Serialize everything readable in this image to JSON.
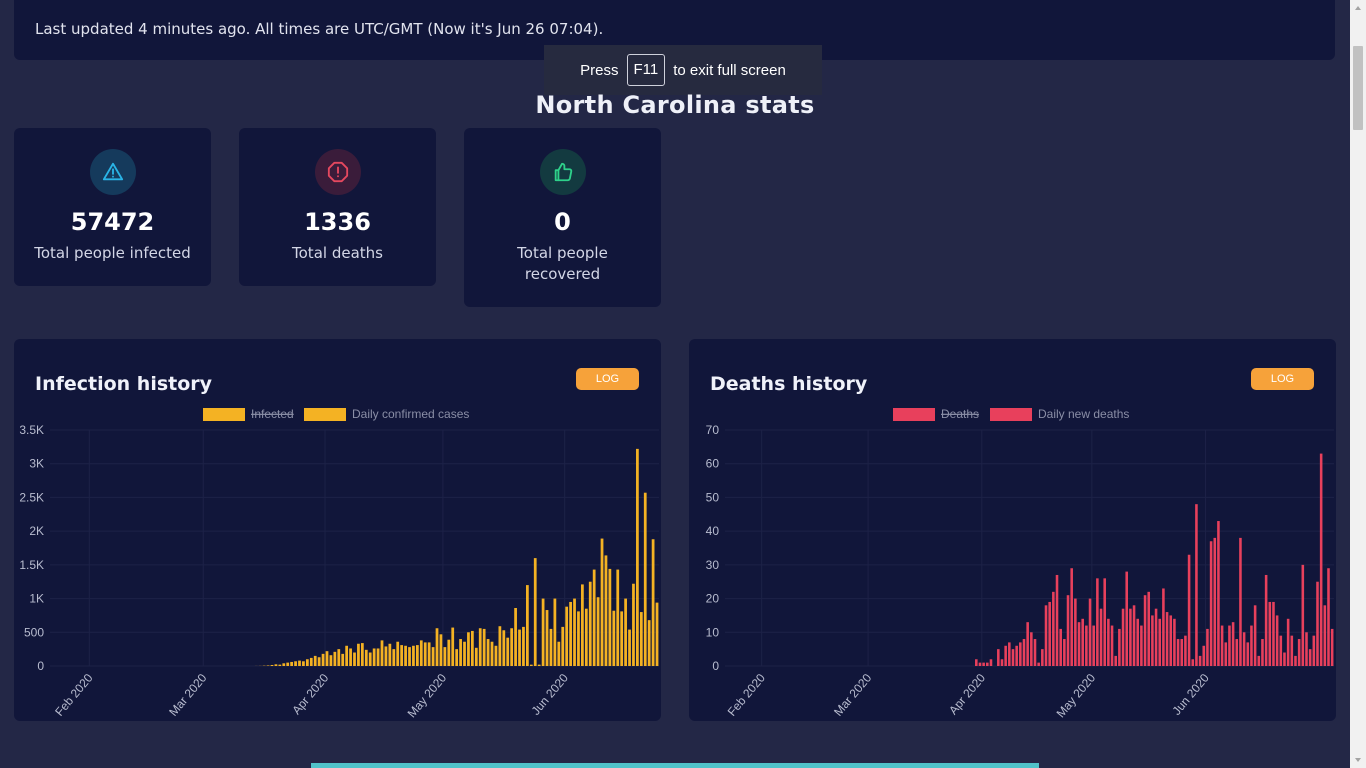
{
  "banner": {
    "text": "Last updated 4 minutes ago. All times are UTC/GMT (Now it's Jun 26 07:04)."
  },
  "fullscreen_toast": {
    "press": "Press",
    "key": "F11",
    "rest": "to exit full screen"
  },
  "page": {
    "title": "North Carolina stats"
  },
  "stats": [
    {
      "value": "57472",
      "label": "Total people infected",
      "icon": "warning-triangle-icon",
      "color": "#2ab4e6"
    },
    {
      "value": "1336",
      "label": "Total deaths",
      "icon": "alert-octagon-icon",
      "color": "#e5485f"
    },
    {
      "value": "0",
      "label": "Total people recovered",
      "icon": "thumbs-up-icon",
      "color": "#2ed18a"
    }
  ],
  "colors": {
    "infection": "#f4b223",
    "deaths": "#e8405c",
    "accent": "#f6a23a",
    "card": "#11163a",
    "background": "#232746"
  },
  "charts": {
    "infection": {
      "title": "Infection history",
      "log_label": "LOG"
    },
    "deaths": {
      "title": "Deaths history",
      "log_label": "LOG"
    }
  },
  "chart_data": [
    {
      "type": "bar",
      "title": "Infection history",
      "legend": [
        {
          "name": "Infected",
          "hidden": true
        },
        {
          "name": "Daily confirmed cases",
          "hidden": false
        }
      ],
      "ylim": [
        0,
        3500
      ],
      "yticks": [
        0,
        500,
        1000,
        1500,
        2000,
        2500,
        3000,
        3500
      ],
      "yticklabels": [
        "0",
        "500",
        "1K",
        "1.5K",
        "2K",
        "2.5K",
        "3K",
        "3.5K"
      ],
      "xticklabels": [
        "Feb 2020",
        "Mar 2020",
        "Apr 2020",
        "May 2020",
        "Jun 2020"
      ],
      "x_start": "2020-01-22",
      "series": [
        {
          "name": "Daily confirmed cases",
          "values": [
            0,
            0,
            0,
            0,
            0,
            0,
            0,
            0,
            0,
            0,
            0,
            0,
            0,
            0,
            0,
            0,
            0,
            0,
            0,
            0,
            0,
            0,
            0,
            0,
            0,
            0,
            0,
            0,
            0,
            0,
            0,
            0,
            0,
            0,
            0,
            0,
            0,
            0,
            0,
            0,
            0,
            0,
            0,
            0,
            0,
            0,
            0,
            0,
            0,
            0,
            0,
            0,
            1,
            2,
            5,
            8,
            15,
            25,
            20,
            40,
            50,
            60,
            70,
            80,
            70,
            100,
            120,
            150,
            130,
            180,
            220,
            160,
            210,
            250,
            180,
            300,
            260,
            200,
            330,
            340,
            240,
            200,
            260,
            260,
            380,
            290,
            330,
            250,
            360,
            310,
            300,
            280,
            300,
            310,
            380,
            350,
            350,
            280,
            560,
            470,
            280,
            390,
            570,
            250,
            400,
            360,
            500,
            520,
            270,
            560,
            550,
            400,
            360,
            300,
            590,
            530,
            420,
            560,
            860,
            540,
            580,
            1200,
            20,
            1600,
            20,
            1000,
            830,
            550,
            1000,
            360,
            580,
            880,
            950,
            1000,
            810,
            1210,
            850,
            1250,
            1430,
            1020,
            1890,
            1640,
            1440,
            820,
            1430,
            810,
            1000,
            540,
            1220,
            3220,
            800,
            2570,
            680,
            1880,
            940
          ]
        }
      ]
    },
    {
      "type": "bar",
      "title": "Deaths history",
      "legend": [
        {
          "name": "Deaths",
          "hidden": true
        },
        {
          "name": "Daily new deaths",
          "hidden": false
        }
      ],
      "ylim": [
        0,
        70
      ],
      "yticks": [
        0,
        10,
        20,
        30,
        40,
        50,
        60,
        70
      ],
      "yticklabels": [
        "0",
        "10",
        "20",
        "30",
        "40",
        "50",
        "60",
        "70"
      ],
      "xticklabels": [
        "Feb 2020",
        "Mar 2020",
        "Apr 2020",
        "May 2020",
        "Jun 2020"
      ],
      "x_start": "2020-01-22",
      "series": [
        {
          "name": "Daily new deaths",
          "values": [
            0,
            0,
            0,
            0,
            0,
            0,
            0,
            0,
            0,
            0,
            0,
            0,
            0,
            0,
            0,
            0,
            0,
            0,
            0,
            0,
            0,
            0,
            0,
            0,
            0,
            0,
            0,
            0,
            0,
            0,
            0,
            0,
            0,
            0,
            0,
            0,
            0,
            0,
            0,
            0,
            0,
            0,
            0,
            0,
            0,
            0,
            0,
            0,
            0,
            0,
            0,
            0,
            0,
            0,
            0,
            0,
            0,
            0,
            0,
            0,
            0,
            0,
            0,
            0,
            0,
            0,
            0,
            0,
            2,
            1,
            1,
            1,
            2,
            0,
            5,
            2,
            6,
            7,
            5,
            6,
            7,
            8,
            13,
            10,
            8,
            1,
            5,
            18,
            19,
            22,
            27,
            11,
            8,
            21,
            29,
            20,
            13,
            14,
            12,
            20,
            12,
            26,
            17,
            26,
            14,
            12,
            3,
            11,
            17,
            28,
            17,
            18,
            14,
            12,
            21,
            22,
            15,
            17,
            14,
            23,
            16,
            15,
            14,
            8,
            8,
            9,
            33,
            2,
            48,
            3,
            6,
            11,
            37,
            38,
            43,
            12,
            7,
            12,
            13,
            8,
            38,
            10,
            7,
            12,
            18,
            3,
            8,
            27,
            19,
            19,
            15,
            9,
            4,
            14,
            9,
            3,
            8,
            30,
            10,
            5,
            9,
            25,
            63,
            18,
            29,
            11
          ]
        }
      ]
    }
  ]
}
